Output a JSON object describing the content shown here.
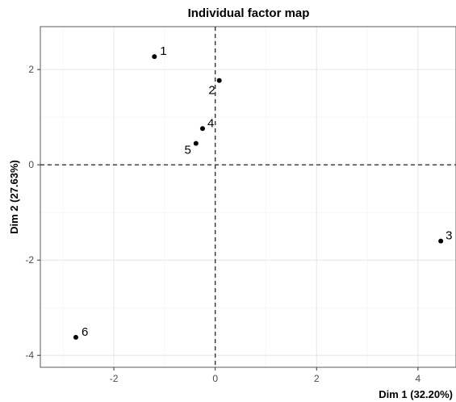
{
  "chart_data": {
    "type": "scatter",
    "title": "Individual factor map",
    "xlabel": "Dim 1 (32.20%)",
    "ylabel": "Dim 2 (27.63%)",
    "xlim": [
      -3.45,
      4.75
    ],
    "ylim": [
      -4.25,
      2.9
    ],
    "xticks": [
      -2,
      0,
      2,
      4
    ],
    "yticks": [
      -4,
      -2,
      0,
      2
    ],
    "grid": true,
    "reference_lines": {
      "x": 0,
      "y": 0,
      "style": "dashed"
    },
    "points": [
      {
        "label": "1",
        "x": -1.2,
        "y": 2.27
      },
      {
        "label": "2",
        "x": 0.08,
        "y": 1.77
      },
      {
        "label": "3",
        "x": 4.45,
        "y": -1.6
      },
      {
        "label": "4",
        "x": -0.25,
        "y": 0.76
      },
      {
        "label": "5",
        "x": -0.38,
        "y": 0.45
      },
      {
        "label": "6",
        "x": -2.75,
        "y": -3.62
      }
    ]
  }
}
